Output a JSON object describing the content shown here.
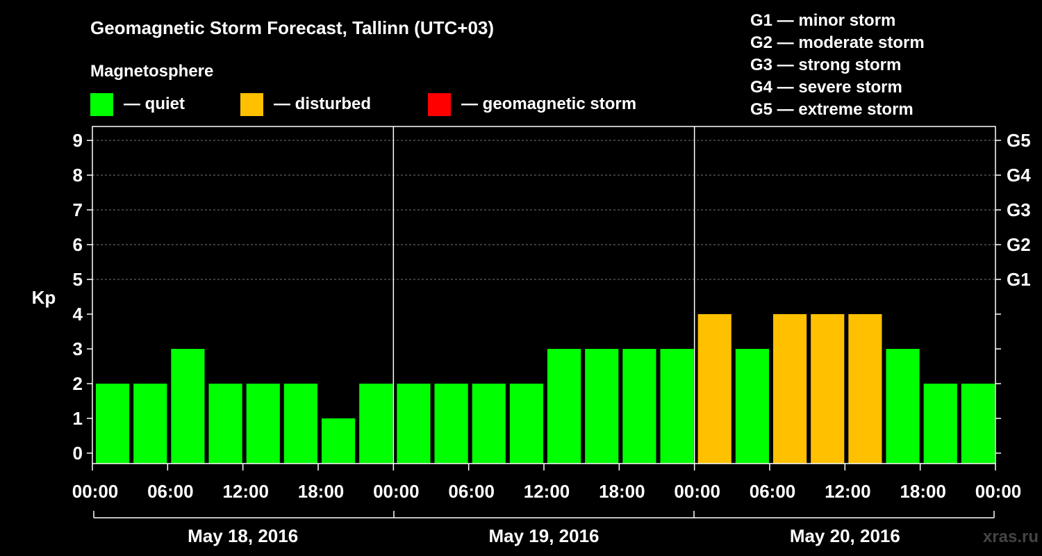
{
  "chart_data": {
    "type": "bar",
    "title": "Geomagnetic Storm Forecast, Tallinn (UTC+03)",
    "legend_heading": "Magnetosphere",
    "legend": [
      {
        "label": "— quiet",
        "color": "#00ff00"
      },
      {
        "label": "— disturbed",
        "color": "#ffc000"
      },
      {
        "label": "— geomagnetic storm",
        "color": "#ff0000"
      }
    ],
    "storm_scale": [
      "G1 — minor storm",
      "G2 — moderate storm",
      "G3 — strong storm",
      "G4 — severe storm",
      "G5 — extreme storm"
    ],
    "ylabel": "Kp",
    "ylim": [
      0,
      9
    ],
    "yticks": [
      "0",
      "1",
      "2",
      "3",
      "4",
      "5",
      "6",
      "7",
      "8",
      "9"
    ],
    "right_ticks": [
      {
        "kp": 5,
        "label": "G1"
      },
      {
        "kp": 6,
        "label": "G2"
      },
      {
        "kp": 7,
        "label": "G3"
      },
      {
        "kp": 8,
        "label": "G4"
      },
      {
        "kp": 9,
        "label": "G5"
      }
    ],
    "gridlines_at": [
      5,
      6,
      7,
      8,
      9
    ],
    "xticks": [
      "00:00",
      "06:00",
      "12:00",
      "18:00",
      "00:00",
      "06:00",
      "12:00",
      "18:00",
      "00:00",
      "06:00",
      "12:00",
      "18:00",
      "00:00"
    ],
    "days": [
      "May 18, 2016",
      "May 19, 2016",
      "May 20, 2016"
    ],
    "values": [
      2,
      2,
      3,
      2,
      2,
      2,
      1,
      2,
      2,
      2,
      2,
      2,
      3,
      3,
      3,
      3,
      4,
      3,
      4,
      4,
      4,
      3,
      2,
      2
    ],
    "status": [
      "quiet",
      "quiet",
      "quiet",
      "quiet",
      "quiet",
      "quiet",
      "quiet",
      "quiet",
      "quiet",
      "quiet",
      "quiet",
      "quiet",
      "quiet",
      "quiet",
      "quiet",
      "quiet",
      "disturbed",
      "quiet",
      "disturbed",
      "disturbed",
      "disturbed",
      "quiet",
      "quiet",
      "quiet"
    ],
    "status_colors": {
      "quiet": "#00ff00",
      "disturbed": "#ffc000",
      "storm": "#ff0000"
    }
  },
  "watermark": "xras.ru"
}
